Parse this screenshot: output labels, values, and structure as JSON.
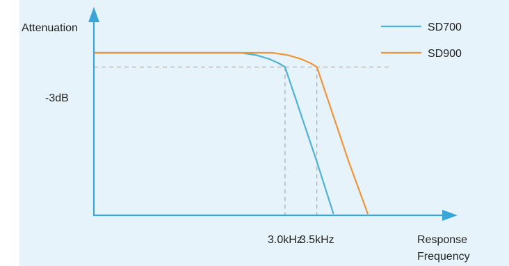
{
  "chart_data": {
    "type": "line",
    "title": "",
    "ylabel": "Attenuation",
    "xlabel": "Response Frequency",
    "xlabel_lines": [
      "Response",
      "Frequency"
    ],
    "y_reference": {
      "label": "-3dB",
      "level": -3
    },
    "x_tick_labels": [
      {
        "label": "3.0kHz",
        "value": 3.0
      },
      {
        "label": "3.5kHz",
        "value": 3.5
      }
    ],
    "xlim": [
      0,
      5.5
    ],
    "ylim": [
      -40,
      3
    ],
    "legend_position": "top-right",
    "grid": false,
    "series": [
      {
        "name": "SD700",
        "color": "#4fb1d5",
        "points": [
          [
            0,
            0
          ],
          [
            2.3,
            0
          ],
          [
            2.55,
            -0.5
          ],
          [
            2.75,
            -1.3
          ],
          [
            2.9,
            -2.2
          ],
          [
            3.0,
            -3
          ],
          [
            3.2,
            -11
          ],
          [
            3.5,
            -23
          ],
          [
            3.76,
            -34
          ]
        ]
      },
      {
        "name": "SD900",
        "color": "#f0943a",
        "points": [
          [
            0,
            0
          ],
          [
            2.3,
            0
          ],
          [
            2.8,
            0
          ],
          [
            3.05,
            -0.5
          ],
          [
            3.25,
            -1.3
          ],
          [
            3.4,
            -2.2
          ],
          [
            3.5,
            -3
          ],
          [
            3.7,
            -11
          ],
          [
            4.0,
            -23
          ],
          [
            4.3,
            -34
          ]
        ]
      }
    ]
  }
}
